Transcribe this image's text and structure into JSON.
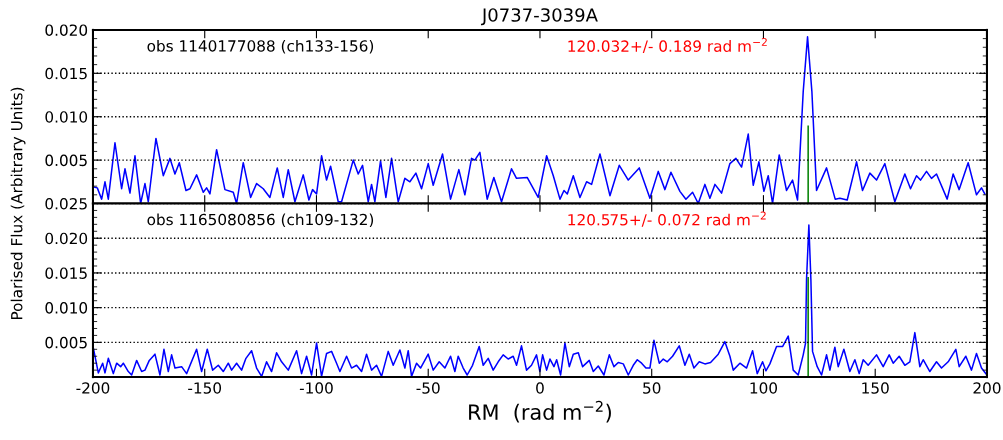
{
  "chart_data": [
    {
      "type": "line",
      "title": "J0737-3039A",
      "ylabel": "Polarised Flux (Arbitrary Units)",
      "annotations": [
        "obs 1140177088 (ch133-156)",
        "120.032+/- 0.189 rad m$^{−2}$"
      ],
      "xlim": [
        -200,
        200
      ],
      "xticks": [
        -200,
        -150,
        -100,
        -50,
        0,
        50,
        100,
        150,
        200
      ],
      "ylim": [
        0,
        0.02
      ],
      "yticks": [
        {
          "value": 0.005,
          "label": "0.005"
        },
        {
          "value": 0.01,
          "label": "0.010"
        },
        {
          "value": 0.015,
          "label": "0.015"
        },
        {
          "value": 0.02,
          "label": "0.020"
        }
      ],
      "tick_labels": "y",
      "grid": "y",
      "series": [
        {
          "color": "#0000ff",
          "x": [
            -199.85,
            -198.06,
            -196.12,
            -194.63,
            -193.14,
            -190.16,
            -187.18,
            -185.68,
            -183.45,
            -181.21,
            -178.68,
            -176.74,
            -175.25,
            -171.82,
            -168.54,
            -165.56,
            -163.32,
            -161.38,
            -158.4,
            -156.61,
            -153.63,
            -150.65,
            -149.16,
            -147.66,
            -144.68,
            -140.95,
            -137.23,
            -135.74,
            -132.76,
            -129.48,
            -126.79,
            -123.81,
            -120.83,
            -117.55,
            -114.86,
            -112.62,
            -109.64,
            -105.92,
            -103.38,
            -101.74,
            -99.95,
            -97.72,
            -95.48,
            -93.69,
            -90.26,
            -88.77,
            -83.55,
            -81.32,
            -79.38,
            -76.84,
            -75.35,
            -73.86,
            -71.33,
            -68.94,
            -66.41,
            -63.42,
            -60.44,
            -58.21,
            -55.52,
            -52.99,
            -50.0,
            -47.77,
            -43.59,
            -40.01,
            -36.29,
            -33.6,
            -30.62,
            -29.13,
            -26.89,
            -23.61,
            -20.63,
            -17.2,
            -12.73,
            -10.49,
            -5.72,
            -0.8,
            2.98,
            5.96,
            8.95,
            10.74,
            12.23,
            14.91,
            17.89,
            20.87,
            23.11,
            26.84,
            31.31,
            35.49,
            39.51,
            44.43,
            49.2,
            52.93,
            55.91,
            58.6,
            62.62,
            65.31,
            68.29,
            70.82,
            73.8,
            76.04,
            78.28,
            81.26,
            84.99,
            87.67,
            90.21,
            93.19,
            95.42,
            97.96,
            100.2,
            102.13,
            104.07,
            107.05,
            110.33,
            113.02,
            115.25,
            117.79,
            119.73,
            121.67,
            123.75,
            128.23,
            132.1,
            134.19,
            137.47,
            141.65,
            144.33,
            147.61,
            150.59,
            154.32,
            158.79,
            163.26,
            165.8,
            168.48,
            170.27,
            172.96,
            175.19,
            177.43,
            182.2,
            184.88,
            187.57,
            191.59,
            195.32,
            197.56,
            199.05
          ],
          "values": [
            0.0019,
            0.0018,
            0.0005,
            0.0025,
            0.0005,
            0.007,
            0.0017,
            0.004,
            0.0012,
            0.0055,
            0.0,
            0.0023,
            0.0002,
            0.0075,
            0.0032,
            0.0052,
            0.0034,
            0.0047,
            0.0015,
            0.0017,
            0.0033,
            0.0013,
            0.0018,
            0.0011,
            0.0062,
            0.0016,
            0.0013,
            0.0,
            0.0047,
            0.0007,
            0.0023,
            0.0017,
            0.0007,
            0.0041,
            0.0007,
            0.0039,
            0.0002,
            0.0033,
            0.0004,
            0.0016,
            0.0011,
            0.0055,
            0.0027,
            0.0043,
            0.0002,
            0.0002,
            0.005,
            0.0034,
            0.0044,
            0.0002,
            0.0022,
            0.0002,
            0.0049,
            0.0007,
            0.0052,
            0.0002,
            0.0029,
            0.0025,
            0.0035,
            0.0017,
            0.0046,
            0.0021,
            0.0057,
            0.0005,
            0.0039,
            0.001,
            0.0052,
            0.005,
            0.0059,
            0.0005,
            0.003,
            0.0002,
            0.004,
            0.0029,
            0.003,
            0.0007,
            0.0055,
            0.0032,
            0.0005,
            0.0015,
            0.0011,
            0.0032,
            0.0007,
            0.0025,
            0.0022,
            0.0057,
            0.0009,
            0.0044,
            0.0027,
            0.0041,
            0.0006,
            0.0037,
            0.0016,
            0.0036,
            0.0014,
            0.0005,
            0.0013,
            0.0,
            0.0022,
            0.0006,
            0.0022,
            0.0012,
            0.0046,
            0.0052,
            0.0042,
            0.008,
            0.0021,
            0.0048,
            0.0014,
            0.0032,
            0.0,
            0.0056,
            0.0015,
            0.0027,
            0.0004,
            0.0129,
            0.0192,
            0.0129,
            0.0015,
            0.0041,
            0.0005,
            0.0006,
            0.0004,
            0.0048,
            0.0015,
            0.0035,
            0.0027,
            0.0046,
            0.0002,
            0.0034,
            0.0017,
            0.0032,
            0.0027,
            0.0037,
            0.0029,
            0.0034,
            0.0005,
            0.0034,
            0.0016,
            0.0047,
            0.001,
            0.0018,
            0.0011
          ]
        },
        {
          "color": "#008000",
          "x": [
            120,
            120
          ],
          "values": [
            0,
            0.0089
          ]
        }
      ]
    },
    {
      "type": "line",
      "xlabel": "RM  (rad m$^{−2}$)",
      "annotations": [
        "obs 1165080856 (ch109-132)",
        "120.575+/- 0.072 rad m$^{−2}$"
      ],
      "xlim": [
        -200,
        200
      ],
      "xticks": [
        -200,
        -150,
        -100,
        -50,
        0,
        50,
        100,
        150,
        200
      ],
      "ylim": [
        0,
        0.025
      ],
      "yticks": [
        {
          "value": 0.005,
          "label": "0.005"
        },
        {
          "value": 0.01,
          "label": "0.010"
        },
        {
          "value": 0.015,
          "label": "0.015"
        },
        {
          "value": 0.02,
          "label": "0.020"
        },
        {
          "value": 0.025,
          "label": "0.025"
        }
      ],
      "grid": "y",
      "series": [
        {
          "color": "#0000ff",
          "x": [
            -199.85,
            -197.61,
            -195.67,
            -194.63,
            -193.14,
            -190.9,
            -189.41,
            -187.62,
            -186.43,
            -184.19,
            -182.7,
            -180.47,
            -178.23,
            -176.74,
            -174.8,
            -172.27,
            -170.03,
            -168.24,
            -166.3,
            -164.81,
            -163.32,
            -160.34,
            -158.1,
            -153.63,
            -151.39,
            -148.86,
            -146.47,
            -143.94,
            -141.7,
            -139.46,
            -137.97,
            -135.74,
            -133.5,
            -131.56,
            -129.03,
            -126.79,
            -124.55,
            -122.32,
            -120.08,
            -117.84,
            -115.61,
            -112.62,
            -108.9,
            -106.66,
            -104.42,
            -102.19,
            -99.95,
            -97.72,
            -95.48,
            -93.24,
            -91.01,
            -89.51,
            -86.53,
            -84.3,
            -82.06,
            -79.82,
            -77.59,
            -75.35,
            -73.11,
            -70.88,
            -67.89,
            -65.66,
            -62.68,
            -60.44,
            -58.95,
            -57.46,
            -55.22,
            -53.43,
            -50.0,
            -47.77,
            -45.08,
            -42.55,
            -40.01,
            -38.07,
            -36.58,
            -34.35,
            -32.56,
            -30.17,
            -27.19,
            -25.4,
            -23.16,
            -20.93,
            -18.69,
            -16.46,
            -14.22,
            -11.98,
            -10.49,
            -8.26,
            -6.02,
            -3.78,
            -1.54,
            -0.05,
            1.19,
            2.98,
            4.47,
            6.26,
            7.46,
            9.24,
            11.18,
            13.12,
            14.91,
            17.15,
            19.08,
            22.07,
            23.86,
            26.09,
            28.63,
            31.01,
            33.1,
            35.04,
            37.28,
            39.51,
            41.75,
            43.54,
            45.48,
            47.41,
            49.2,
            50.99,
            53.38,
            55.17,
            56.96,
            59.34,
            62.32,
            64.86,
            66.8,
            68.88,
            71.27,
            73.8,
            76.34,
            79.77,
            82.75,
            84.99,
            86.48,
            89.46,
            92.44,
            95.13,
            97.21,
            99.6,
            101.09,
            102.88,
            105.86,
            108.54,
            111.08,
            113.32,
            115.55,
            117.79,
            118.83,
            119.28,
            120.32,
            121.22,
            121.96,
            124.05,
            125.99,
            128.23,
            129.72,
            131.95,
            133.44,
            135.98,
            138.66,
            140.9,
            142.84,
            144.63,
            146.86,
            150.59,
            153.57,
            156.26,
            158.05,
            160.73,
            163.26,
            165.5,
            167.74,
            169.97,
            171.47,
            174.45,
            177.43,
            179.67,
            182.65,
            186.08,
            187.57,
            190.55,
            193.08,
            195.32,
            197.56,
            199.5
          ],
          "values": [
            0.0042,
            0.0006,
            0.002,
            0.0006,
            0.0027,
            0.0005,
            0.002,
            0.0015,
            0.002,
            0.0008,
            0.0003,
            0.0024,
            0.0008,
            0.001,
            0.0024,
            0.0033,
            0.0003,
            0.004,
            0.0008,
            0.0032,
            0.0013,
            0.0015,
            0.0005,
            0.004,
            0.0008,
            0.004,
            0.001,
            0.0017,
            0.0008,
            0.002,
            0.001,
            0.002,
            0.001,
            0.0027,
            0.0038,
            0.0013,
            0.0001,
            0.0022,
            0.0008,
            0.0035,
            0.0022,
            0.001,
            0.0038,
            0.0005,
            0.003,
            0.0003,
            0.0049,
            0.0001,
            0.0034,
            0.0037,
            0.002,
            0.0008,
            0.003,
            0.0013,
            0.0017,
            0.0008,
            0.0033,
            0.001,
            0.0017,
            0.0001,
            0.0037,
            0.0017,
            0.0039,
            0.0013,
            0.0038,
            0.0001,
            0.002,
            0.0013,
            0.0033,
            0.001,
            0.0022,
            0.0013,
            0.003,
            0.0008,
            0.003,
            0.0013,
            0.0003,
            0.0017,
            0.0044,
            0.0017,
            0.0027,
            0.001,
            0.0022,
            0.0032,
            0.0026,
            0.003,
            0.0017,
            0.0045,
            0.001,
            0.0017,
            0.0032,
            0.0008,
            0.0032,
            0.001,
            0.0026,
            0.0015,
            0.0025,
            0.0003,
            0.0049,
            0.0015,
            0.0033,
            0.0035,
            0.0015,
            0.0024,
            0.0008,
            0.0016,
            0.0003,
            0.0032,
            0.0015,
            0.0021,
            0.0019,
            0.0003,
            0.0017,
            0.0025,
            0.002,
            0.0013,
            0.0013,
            0.0053,
            0.002,
            0.0026,
            0.0022,
            0.003,
            0.0045,
            0.0017,
            0.0033,
            0.0013,
            0.0022,
            0.0019,
            0.0021,
            0.0033,
            0.0051,
            0.003,
            0.001,
            0.002,
            0.0013,
            0.0038,
            0.0005,
            0.0022,
            0.0009,
            0.0019,
            0.0044,
            0.0044,
            0.0059,
            0.001,
            0.0003,
            0.0032,
            0.0049,
            0.0141,
            0.0219,
            0.0141,
            0.0037,
            0.0015,
            0.0003,
            0.0032,
            0.001,
            0.0043,
            0.0015,
            0.004,
            0.0008,
            0.0025,
            0.0005,
            0.0025,
            0.0017,
            0.0032,
            0.0015,
            0.0032,
            0.002,
            0.003,
            0.0017,
            0.0022,
            0.0064,
            0.0015,
            0.0025,
            0.0008,
            0.0022,
            0.0013,
            0.0022,
            0.004,
            0.0015,
            0.003,
            0.001,
            0.0034,
            0.0013,
            0.0005
          ]
        },
        {
          "color": "#008000",
          "x": [
            120,
            120
          ],
          "values": [
            0,
            0.0143
          ]
        }
      ]
    }
  ]
}
